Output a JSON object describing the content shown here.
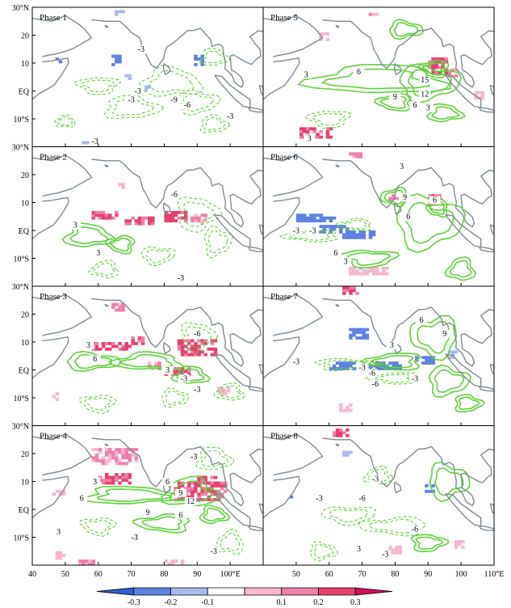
{
  "chart_data": {
    "type": "heatmap",
    "layout": "4x2 panels",
    "panels": [
      {
        "title": "Phase 1",
        "contour_labels": [
          "-3",
          "-3",
          "-9",
          "-6",
          "-3",
          "-3",
          "-3"
        ]
      },
      {
        "title": "Phase 2",
        "contour_labels": [
          "-6",
          "3",
          "3",
          "-3"
        ]
      },
      {
        "title": "Phase 3",
        "contour_labels": [
          "3",
          "-6",
          "6",
          "3",
          "-3",
          "-3"
        ]
      },
      {
        "title": "Phase 4",
        "contour_labels": [
          "-3",
          "3",
          "6",
          "6",
          "9",
          "9",
          "12",
          "6",
          "3",
          "-3",
          "-3"
        ]
      },
      {
        "title": "Phase 5",
        "contour_labels": [
          "3",
          "6",
          "15",
          "12",
          "9",
          "6",
          "3",
          "3"
        ]
      },
      {
        "title": "Phase 6",
        "contour_labels": [
          "3",
          "9",
          "6",
          "6",
          "-3",
          "-3",
          "6",
          "3"
        ]
      },
      {
        "title": "Phase 7",
        "contour_labels": [
          "6",
          "9",
          "3",
          "-3",
          "-3",
          "-6",
          "-6",
          "-3"
        ]
      },
      {
        "title": "Phase 8",
        "contour_labels": [
          "-3",
          "-3",
          "-6",
          "-6",
          "3",
          "-3"
        ]
      }
    ],
    "x_tick_labels_left": [
      "40",
      "50",
      "60",
      "70",
      "80",
      "90",
      "100°E"
    ],
    "x_tick_labels_right": [
      "50",
      "60",
      "70",
      "80",
      "90",
      "100",
      "110°E"
    ],
    "y_tick_labels": [
      "30°N",
      "20",
      "10",
      "EQ",
      "10°S"
    ],
    "xlim": [
      40,
      110
    ],
    "ylim": [
      -20,
      30
    ],
    "colorbar": {
      "labels": [
        "-0.3",
        "-0.2",
        "-0.1",
        "0.1",
        "0.2",
        "0.3"
      ],
      "colors": [
        "#2d5fd0",
        "#5e83e0",
        "#aab9ee",
        "#ffffff",
        "#f6b7cf",
        "#ee7fa8",
        "#e8406e",
        "#d0105a"
      ]
    },
    "contour_color": "#5fd13a",
    "coast_color": "#7d8a93"
  }
}
